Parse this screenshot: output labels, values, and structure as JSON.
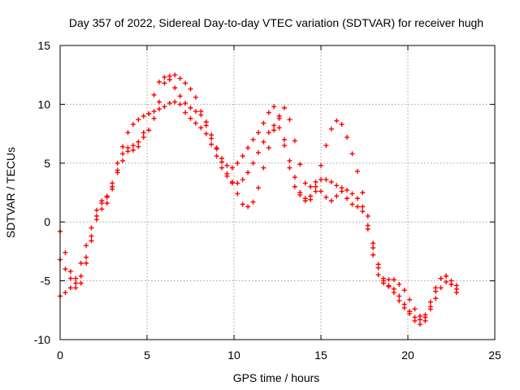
{
  "chart_data": {
    "type": "scatter",
    "title": "Day 357 of 2022, Sidereal Day-to-day VTEC variation (SDTVAR) for receiver hugh",
    "xlabel": "GPS time / hours",
    "ylabel": "SDTVAR / TECUs",
    "xlim": [
      0,
      25
    ],
    "ylim": [
      -10,
      15
    ],
    "xticks": [
      0,
      5,
      10,
      15,
      20,
      25
    ],
    "yticks": [
      -10,
      -5,
      0,
      5,
      10,
      15
    ],
    "grid": true,
    "marker": "+",
    "color": "#ff0000",
    "series": [
      {
        "x": [
          0.0,
          0.3,
          0.6,
          0.9,
          1.2,
          1.5,
          1.8,
          2.1,
          2.4,
          2.7,
          3.0,
          3.3,
          3.6,
          3.9,
          4.2,
          4.5,
          4.8,
          5.1,
          5.4,
          5.7,
          6.0,
          6.3,
          6.6,
          6.9,
          7.2,
          7.5,
          7.8,
          8.1,
          8.4,
          8.7,
          9.0,
          9.3,
          9.6,
          9.9,
          10.2,
          10.5,
          10.8,
          11.1,
          11.4,
          11.7,
          12.0,
          12.3,
          12.6,
          12.9,
          13.2,
          13.5,
          13.8,
          14.1,
          14.4,
          14.7,
          15.0,
          15.3,
          15.6,
          15.9,
          16.2,
          16.5,
          16.8,
          17.1,
          17.4,
          17.7,
          18.0,
          18.3,
          18.6,
          18.9,
          19.2,
          19.5,
          19.8,
          20.1,
          20.4,
          20.7,
          21.0,
          21.3,
          21.6,
          21.9,
          22.2,
          22.5,
          22.8
        ],
        "y": [
          -6.3,
          -6.0,
          -5.6,
          -4.8,
          -3.5,
          -2.0,
          -0.5,
          1.0,
          1.8,
          2.2,
          3.0,
          4.2,
          5.2,
          6.0,
          6.5,
          6.8,
          7.2,
          7.8,
          8.8,
          10.2,
          11.8,
          12.4,
          12.5,
          12.2,
          11.8,
          11.3,
          10.6,
          9.4,
          8.2,
          7.1,
          6.3,
          5.4,
          4.8,
          4.6,
          5.0,
          5.6,
          6.3,
          7.0,
          7.6,
          8.4,
          9.3,
          9.8,
          8.8,
          7.0,
          5.2,
          3.8,
          2.5,
          1.8,
          1.9,
          3.0,
          4.8,
          6.5,
          7.9,
          8.6,
          8.3,
          7.2,
          5.8,
          4.3,
          2.5,
          0.5,
          -1.8,
          -3.6,
          -5.0,
          -5.5,
          -6.0,
          -6.7,
          -7.3,
          -7.8,
          -8.1,
          -8.3,
          -7.9,
          -6.8,
          -5.6,
          -4.8,
          -4.6,
          -5.0,
          -5.4
        ]
      },
      {
        "x": [
          0.0,
          0.3,
          0.6,
          0.9,
          1.2,
          1.5,
          1.8,
          2.1,
          2.4,
          2.7,
          3.0,
          3.3,
          3.6,
          3.9,
          4.2,
          4.5,
          4.8,
          5.1,
          5.4,
          5.7,
          6.0,
          6.3,
          6.6,
          6.9,
          7.2,
          7.5,
          7.8,
          8.1,
          8.4,
          8.7,
          9.0,
          9.3,
          9.6,
          9.9,
          10.2,
          10.5,
          10.8,
          11.1,
          11.4,
          11.7,
          12.0,
          12.3,
          12.6,
          12.9,
          13.2,
          13.5,
          13.8,
          14.1,
          14.4,
          14.7,
          15.0,
          15.3,
          15.6,
          15.9,
          16.2,
          16.5,
          16.8,
          17.1,
          17.4,
          17.7,
          18.0,
          18.3,
          18.6,
          18.9,
          19.2,
          19.5,
          19.8,
          20.1,
          20.4,
          20.7,
          21.0,
          21.3,
          21.6,
          21.9,
          22.2,
          22.5,
          22.8
        ],
        "y": [
          -3.2,
          -4.0,
          -4.8,
          -5.2,
          -4.6,
          -3.0,
          -1.2,
          0.5,
          1.6,
          2.1,
          3.3,
          5.0,
          6.4,
          7.6,
          8.3,
          8.7,
          9.0,
          9.2,
          9.4,
          9.6,
          9.8,
          10.1,
          10.2,
          10.0,
          9.3,
          8.8,
          8.4,
          8.0,
          7.5,
          6.6,
          5.6,
          4.6,
          3.9,
          3.4,
          3.3,
          3.6,
          4.2,
          5.0,
          5.9,
          6.8,
          7.6,
          8.2,
          8.0,
          6.5,
          4.6,
          3.0,
          2.3,
          2.0,
          2.2,
          2.6,
          2.6,
          2.1,
          1.8,
          2.2,
          2.6,
          2.0,
          1.5,
          1.3,
          0.9,
          -0.3,
          -2.2,
          -3.9,
          -4.8,
          -4.9,
          -4.9,
          -5.3,
          -5.8,
          -6.6,
          -7.4,
          -8.0,
          -8.1,
          -7.4,
          -6.5,
          -5.6,
          -5.1,
          -5.3,
          -5.7
        ]
      },
      {
        "x": [
          0.0,
          0.3,
          0.6,
          0.9,
          1.2,
          1.5,
          1.8,
          2.1,
          2.4,
          2.7,
          3.0,
          3.3,
          3.6,
          3.9,
          4.2,
          4.5,
          4.8,
          5.1,
          5.4,
          5.7,
          6.0,
          6.3,
          6.6,
          6.9,
          7.2,
          7.5,
          7.8,
          8.1,
          8.4,
          8.7,
          9.0,
          9.3,
          9.6,
          9.9,
          10.2,
          10.5,
          10.8,
          11.1,
          11.4,
          11.7,
          12.0,
          12.3,
          12.6,
          12.9,
          13.2,
          13.5,
          13.8,
          14.1,
          14.4,
          14.7,
          15.0,
          15.3,
          15.6,
          15.9,
          16.2,
          16.5,
          16.8,
          17.1,
          17.4,
          17.7,
          18.0,
          18.3,
          18.6,
          18.9,
          19.2,
          19.5,
          19.8,
          20.1,
          20.4,
          20.7,
          21.0,
          21.3,
          21.6,
          21.9,
          22.2,
          22.5,
          22.8
        ],
        "y": [
          -0.8,
          -2.6,
          -4.2,
          -5.6,
          -5.2,
          -3.5,
          -1.6,
          0.2,
          1.1,
          1.6,
          2.8,
          4.4,
          5.8,
          6.3,
          6.1,
          6.4,
          7.6,
          9.2,
          10.8,
          11.9,
          12.3,
          12.1,
          11.4,
          10.7,
          10.1,
          9.7,
          9.4,
          9.1,
          8.5,
          7.4,
          6.2,
          5.1,
          4.1,
          3.3,
          2.4,
          1.5,
          1.3,
          1.7,
          2.9,
          4.6,
          6.3,
          7.8,
          9.0,
          9.7,
          8.7,
          6.9,
          4.9,
          3.3,
          3.0,
          3.4,
          3.6,
          3.6,
          3.4,
          3.1,
          2.9,
          2.7,
          2.4,
          2.0,
          1.3,
          -0.6,
          -2.8,
          -4.5,
          -5.2,
          -5.4,
          -5.7,
          -6.3,
          -7.0,
          -7.6,
          -8.4,
          -8.7,
          -8.4,
          -7.2,
          -5.9,
          -4.8,
          -4.6,
          -5.3,
          -6.0
        ]
      }
    ]
  }
}
